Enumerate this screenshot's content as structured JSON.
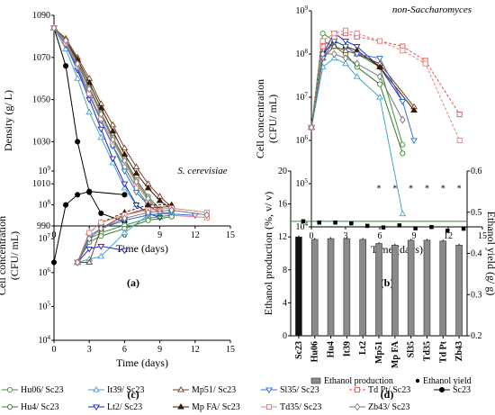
{
  "legend": [
    {
      "name": "Hu06/ Sc23",
      "color": "#3f8f3f",
      "marker": "circle-open",
      "dash": false
    },
    {
      "name": "It39/ Sc23",
      "color": "#4aa3c8",
      "marker": "tri-open",
      "dash": false
    },
    {
      "name": "Mp51/ Sc23",
      "color": "#7a3c1c",
      "marker": "tri-open",
      "dash": false
    },
    {
      "name": "Sl35/ Sc23",
      "color": "#2f6fd6",
      "marker": "tri-down-open",
      "dash": false
    },
    {
      "name": "Td Pt/ Sc23",
      "color": "#e05050",
      "marker": "square-open",
      "dash": true
    },
    {
      "name": "Sc23",
      "color": "#000000",
      "marker": "circle",
      "dash": false
    },
    {
      "name": "Hu4/ Sc23",
      "color": "#2f7f2f",
      "marker": "circle-open",
      "dash": false
    },
    {
      "name": "Lt2/ Sc23",
      "color": "#2222cc",
      "marker": "tri-down-open",
      "dash": false
    },
    {
      "name": "Mp FA/ Sc23",
      "color": "#3a1a0a",
      "marker": "tri",
      "dash": false
    },
    {
      "name": "Td35/ Sc23",
      "color": "#e08080",
      "marker": "square-open",
      "dash": false
    },
    {
      "name": "Zb43/ Sc23",
      "color": "#777777",
      "marker": "diamond-open",
      "dash": false
    }
  ],
  "chart_data": [
    {
      "panel": "(a)",
      "type": "line",
      "xlabel": "Time (days)",
      "ylabel": "Density (g/ L)",
      "xlim": [
        0,
        15
      ],
      "ylim": [
        990,
        1090
      ],
      "xticks": [
        0,
        3,
        6,
        9,
        12,
        15
      ],
      "yticks": [
        990,
        1010,
        1030,
        1050,
        1070,
        1090
      ],
      "series": [
        {
          "name": "Sc23",
          "color": "#000000",
          "marker": "circle",
          "x": [
            0,
            1,
            2,
            3,
            4,
            6
          ],
          "y": [
            1084,
            1066,
            1030,
            1006,
            996,
            992
          ]
        },
        {
          "name": "Hu06/ Sc23",
          "color": "#3f8f3f",
          "marker": "circle-open",
          "x": [
            0,
            1,
            2,
            3,
            4,
            5,
            6,
            7,
            8,
            9
          ],
          "y": [
            1084,
            1077,
            1066,
            1052,
            1040,
            1028,
            1018,
            1008,
            1000,
            996
          ]
        },
        {
          "name": "Hu4/ Sc23",
          "color": "#2f7f2f",
          "marker": "circle-open",
          "x": [
            0,
            1,
            2,
            3,
            4,
            5,
            6,
            7,
            8,
            9
          ],
          "y": [
            1084,
            1078,
            1068,
            1056,
            1044,
            1032,
            1022,
            1012,
            1004,
            998
          ]
        },
        {
          "name": "It39/ Sc23",
          "color": "#4aa3c8",
          "marker": "tri-open",
          "x": [
            0,
            1,
            2,
            3,
            4,
            5,
            6,
            7,
            8,
            9
          ],
          "y": [
            1084,
            1074,
            1060,
            1044,
            1032,
            1020,
            1008,
            1000,
            996,
            994
          ]
        },
        {
          "name": "Lt2/ Sc23",
          "color": "#2222cc",
          "marker": "tri-down-open",
          "x": [
            0,
            1,
            2,
            3,
            4,
            5,
            6,
            7,
            8,
            9
          ],
          "y": [
            1084,
            1076,
            1064,
            1050,
            1036,
            1022,
            1010,
            1000,
            996,
            994
          ]
        },
        {
          "name": "Mp51/ Sc23",
          "color": "#7a3c1c",
          "marker": "tri-open",
          "x": [
            0,
            1,
            2,
            3,
            4,
            5,
            6,
            7,
            8,
            9,
            10
          ],
          "y": [
            1084,
            1079,
            1070,
            1060,
            1048,
            1038,
            1027,
            1018,
            1010,
            1004,
            999
          ]
        },
        {
          "name": "Mp FA/ Sc23",
          "color": "#3a1a0a",
          "marker": "tri",
          "x": [
            0,
            1,
            2,
            3,
            4,
            5,
            6,
            7,
            8,
            9,
            10
          ],
          "y": [
            1084,
            1078,
            1069,
            1058,
            1046,
            1035,
            1024,
            1015,
            1008,
            1002,
            998
          ]
        },
        {
          "name": "Sl35/ Sc23",
          "color": "#2f6fd6",
          "marker": "tri-down-open",
          "x": [
            0,
            1,
            2,
            3,
            4,
            5,
            6,
            7,
            8,
            9,
            12
          ],
          "y": [
            1084,
            1076,
            1065,
            1052,
            1040,
            1028,
            1016,
            1006,
            1000,
            996,
            995
          ]
        },
        {
          "name": "Td35/ Sc23",
          "color": "#e08080",
          "marker": "square-open",
          "x": [
            0,
            1,
            2,
            3,
            4,
            5,
            6,
            7,
            8,
            9,
            10,
            13
          ],
          "y": [
            1084,
            1077,
            1066,
            1053,
            1041,
            1030,
            1020,
            1010,
            1002,
            997,
            995,
            994
          ]
        },
        {
          "name": "Zb43/ Sc23",
          "color": "#777777",
          "marker": "diamond-open",
          "x": [
            0,
            1,
            2,
            3,
            4,
            5,
            6,
            7,
            8,
            9
          ],
          "y": [
            1084,
            1078,
            1067,
            1055,
            1043,
            1031,
            1021,
            1011,
            1003,
            997
          ]
        }
      ]
    },
    {
      "panel": "(b)",
      "type": "line",
      "title": "non-Saccharomyces",
      "xlabel": "Time (days)",
      "ylabel": "Cell concentration (CFU/ mL)",
      "yscale": "log",
      "xlim": [
        0,
        15
      ],
      "ylim": [
        10000,
        1000000000
      ],
      "xticks": [
        0,
        3,
        6,
        9,
        12,
        15
      ],
      "ytick_exponents": [
        4,
        5,
        6,
        7,
        8,
        9
      ],
      "series": [
        {
          "name": "Hu06/ Sc23",
          "color": "#3f8f3f",
          "marker": "circle-open",
          "x": [
            0,
            1,
            2,
            3,
            4,
            6,
            8
          ],
          "y": [
            2000000,
            300000000,
            200000000,
            150000000,
            100000000,
            50000000,
            800000
          ]
        },
        {
          "name": "Hu4/ Sc23",
          "color": "#2f7f2f",
          "marker": "circle-open",
          "x": [
            0,
            1,
            2,
            3,
            4,
            6,
            8
          ],
          "y": [
            2000000,
            200000000,
            150000000,
            100000000,
            50000000,
            20000000,
            500000
          ]
        },
        {
          "name": "It39/ Sc23",
          "color": "#4aa3c8",
          "marker": "tri-open",
          "x": [
            0,
            1,
            2,
            3,
            4,
            6,
            8
          ],
          "y": [
            2000000,
            50000000,
            80000000,
            60000000,
            30000000,
            10000000,
            20000
          ]
        },
        {
          "name": "Lt2/ Sc23",
          "color": "#2222cc",
          "marker": "tri-down-open",
          "x": [
            0,
            1,
            2,
            3,
            4,
            6,
            8
          ],
          "y": [
            2000000,
            100000000,
            300000000,
            200000000,
            150000000,
            50000000,
            8000000
          ]
        },
        {
          "name": "Mp51/ Sc23",
          "color": "#7a3c1c",
          "marker": "tri-open",
          "x": [
            0,
            1,
            2,
            3,
            4,
            6,
            9
          ],
          "y": [
            2000000,
            80000000,
            150000000,
            120000000,
            100000000,
            60000000,
            6000000
          ]
        },
        {
          "name": "Mp FA/ Sc23",
          "color": "#3a1a0a",
          "marker": "tri",
          "x": [
            0,
            1,
            2,
            3,
            4,
            6,
            9
          ],
          "y": [
            2000000,
            100000000,
            200000000,
            150000000,
            120000000,
            50000000,
            5000000
          ]
        },
        {
          "name": "Sl35/ Sc23",
          "color": "#2f6fd6",
          "marker": "tri-down-open",
          "x": [
            0,
            1,
            2,
            3,
            4,
            6,
            8,
            9
          ],
          "y": [
            2000000,
            80000000,
            200000000,
            150000000,
            100000000,
            80000000,
            8000000,
            1000000
          ]
        },
        {
          "name": "Td Pt/ Sc23",
          "color": "#e05050",
          "marker": "square-open",
          "dash": true,
          "x": [
            0,
            1,
            2,
            3,
            4,
            6,
            8,
            10,
            13
          ],
          "y": [
            2000000,
            150000000,
            250000000,
            300000000,
            250000000,
            200000000,
            150000000,
            70000000,
            4000000
          ]
        },
        {
          "name": "Td35/ Sc23",
          "color": "#e08080",
          "marker": "square-open",
          "dash": true,
          "x": [
            0,
            1,
            2,
            3,
            4,
            6,
            8,
            10,
            13
          ],
          "y": [
            2000000,
            200000000,
            300000000,
            350000000,
            300000000,
            200000000,
            120000000,
            60000000,
            1000000
          ]
        },
        {
          "name": "Zb43/ Sc23",
          "color": "#777777",
          "marker": "diamond-open",
          "x": [
            0,
            1,
            2,
            3,
            4,
            6,
            8
          ],
          "y": [
            2000000,
            100000000,
            100000000,
            80000000,
            60000000,
            30000000,
            3000000
          ]
        }
      ]
    },
    {
      "panel": "(c)",
      "type": "line",
      "title": "S. cerevisiae",
      "xlabel": "Time (days)",
      "ylabel": "Cell concentration (CFU/ mL)",
      "yscale": "log",
      "xlim": [
        0,
        15
      ],
      "ylim": [
        10000,
        1000000000
      ],
      "xticks": [
        0,
        3,
        6,
        9,
        12,
        15
      ],
      "ytick_exponents": [
        4,
        5,
        6,
        7,
        8,
        9
      ],
      "series": [
        {
          "name": "Sc23",
          "color": "#000000",
          "marker": "circle",
          "x": [
            0,
            1,
            2,
            3,
            6
          ],
          "y": [
            2000000,
            100000000,
            200000000,
            250000000,
            200000000
          ]
        },
        {
          "name": "Hu06/ Sc23",
          "color": "#3f8f3f",
          "marker": "circle-open",
          "x": [
            2,
            3,
            4,
            6,
            8,
            10
          ],
          "y": [
            2000000,
            10000000,
            15000000,
            25000000,
            40000000,
            50000000
          ]
        },
        {
          "name": "Hu4/ Sc23",
          "color": "#2f7f2f",
          "marker": "circle-open",
          "x": [
            2,
            3,
            4,
            6,
            8,
            10
          ],
          "y": [
            2000000,
            8000000,
            12000000,
            20000000,
            35000000,
            45000000
          ]
        },
        {
          "name": "It39/ Sc23",
          "color": "#4aa3c8",
          "marker": "tri-open",
          "x": [
            2,
            3,
            4,
            6,
            8,
            10
          ],
          "y": [
            2000000,
            2500000,
            3000000,
            15000000,
            50000000,
            60000000
          ]
        },
        {
          "name": "Lt2/ Sc23",
          "color": "#2222cc",
          "marker": "tri-down-open",
          "x": [
            2,
            3,
            4,
            6
          ],
          "y": [
            2000000,
            5000000,
            6000000,
            4500000
          ]
        },
        {
          "name": "Mp51/ Sc23",
          "color": "#7a3c1c",
          "marker": "tri-open",
          "x": [
            2,
            3,
            4,
            6,
            8,
            10
          ],
          "y": [
            2000000,
            2000000,
            20000000,
            50000000,
            80000000,
            90000000
          ]
        },
        {
          "name": "Mp FA/ Sc23",
          "color": "#3a1a0a",
          "marker": "tri",
          "dash": true,
          "x": [
            2,
            3,
            4,
            6,
            8,
            10
          ],
          "y": [
            2000000,
            15000000,
            30000000,
            60000000,
            100000000,
            100000000
          ]
        },
        {
          "name": "Sl35/ Sc23",
          "color": "#2f6fd6",
          "marker": "tri-down-open",
          "x": [
            2,
            3,
            4,
            6,
            8,
            10
          ],
          "y": [
            2000000,
            12000000,
            20000000,
            35000000,
            50000000,
            60000000
          ]
        },
        {
          "name": "Td35/ Sc23",
          "color": "#e08080",
          "marker": "square-open",
          "x": [
            2,
            3,
            4,
            6,
            8,
            10,
            13
          ],
          "y": [
            2000000,
            15000000,
            30000000,
            50000000,
            70000000,
            80000000,
            60000000
          ]
        },
        {
          "name": "Zb43/ Sc23",
          "color": "#777777",
          "marker": "diamond-open",
          "x": [
            2,
            3,
            4,
            6,
            8,
            10,
            13
          ],
          "y": [
            2000000,
            10000000,
            20000000,
            40000000,
            60000000,
            70000000,
            50000000
          ]
        }
      ]
    },
    {
      "panel": "(d)",
      "type": "bar",
      "ylabel": "Ethanol production (%, v/ v)",
      "y2label": "Ethanol yield (g/ g)",
      "ylim": [
        0,
        20
      ],
      "y2lim": [
        0.2,
        0.6
      ],
      "yticks": [
        0,
        4,
        8,
        12,
        16,
        20
      ],
      "y2ticks": [
        0.2,
        0.3,
        0.4,
        0.5,
        0.6
      ],
      "categories": [
        "Sc23",
        "Hu06",
        "Hu4",
        "It39",
        "Lt2",
        "Mp51",
        "Mp FA",
        "Sl35",
        "Td35",
        "Td Pt",
        "Zb43"
      ],
      "series": [
        {
          "name": "Ethanol production",
          "values": [
            12.0,
            11.7,
            11.8,
            11.8,
            11.7,
            11.2,
            11.0,
            11.6,
            11.6,
            11.5,
            11.0
          ]
        },
        {
          "name": "Ethanol yield",
          "axis": "right",
          "values": [
            0.478,
            0.475,
            0.475,
            0.473,
            0.467,
            0.463,
            0.468,
            0.461,
            0.464,
            0.455,
            0.46
          ]
        }
      ],
      "reference_line": 0.478,
      "significance_marker": "*",
      "significant_categories": [
        "Mp51",
        "Mp FA",
        "Sl35",
        "Td35",
        "Td Pt",
        "Zb43"
      ],
      "legend": [
        {
          "name": "Ethanol production",
          "marker": "bar"
        },
        {
          "name": "Ethanol yield",
          "marker": "dot"
        }
      ]
    }
  ]
}
